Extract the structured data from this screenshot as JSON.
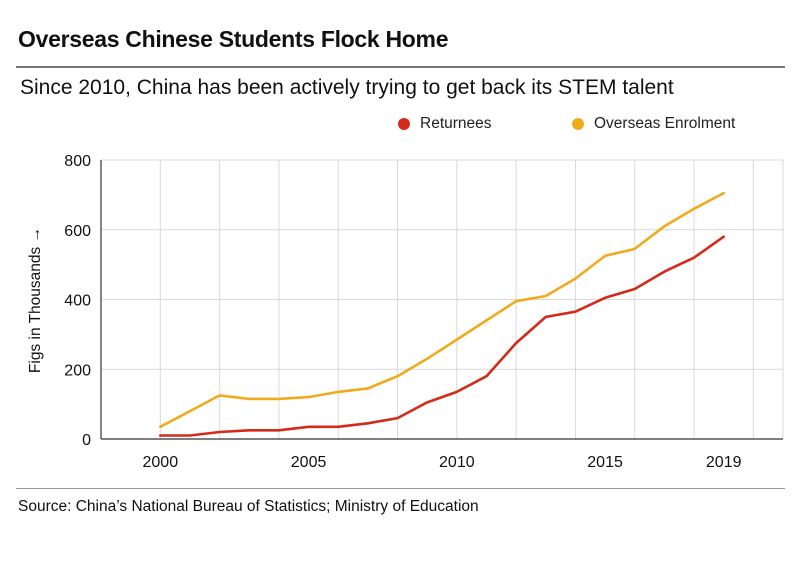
{
  "header": {
    "title": "Overseas Chinese Students Flock Home",
    "subtitle": "Since 2010, China has been actively trying to get back its STEM talent"
  },
  "footer": {
    "source": "Source: China’s National Bureau of Statistics; Ministry of Education"
  },
  "colors": {
    "returnees": "#d42a1a",
    "overseas": "#f0ab1c",
    "grid": "#d9d9d9",
    "axis": "#333333"
  },
  "chart_data": {
    "type": "line",
    "title": "",
    "xlabel": "",
    "ylabel": "Figs in Thousands →",
    "xlim": [
      1998,
      2021
    ],
    "ylim": [
      0,
      800
    ],
    "x_ticks": [
      2000,
      2005,
      2010,
      2015,
      2019
    ],
    "y_ticks": [
      0,
      200,
      400,
      600,
      800
    ],
    "grid": true,
    "legend_position": "top-right",
    "x": [
      2000,
      2001,
      2002,
      2003,
      2004,
      2005,
      2006,
      2007,
      2008,
      2009,
      2010,
      2011,
      2012,
      2013,
      2014,
      2015,
      2016,
      2017,
      2018,
      2019
    ],
    "series": [
      {
        "name": "Returnees",
        "color": "#d42a1a",
        "values": [
          10,
          10,
          20,
          25,
          25,
          35,
          35,
          45,
          60,
          105,
          135,
          180,
          275,
          350,
          365,
          405,
          430,
          480,
          520,
          580
        ]
      },
      {
        "name": "Overseas Enrolment",
        "color": "#f0ab1c",
        "values": [
          35,
          80,
          125,
          115,
          115,
          120,
          135,
          145,
          180,
          230,
          285,
          340,
          395,
          410,
          460,
          525,
          545,
          610,
          660,
          705
        ]
      }
    ]
  }
}
